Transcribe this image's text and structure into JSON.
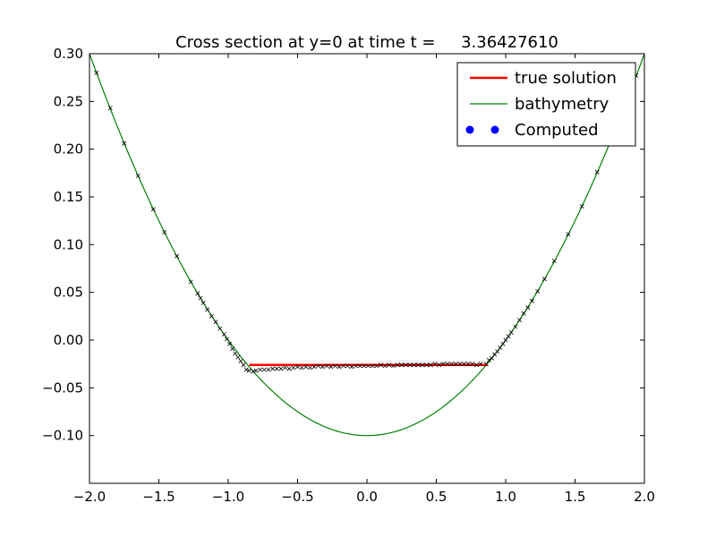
{
  "chart_data": {
    "type": "line",
    "title": "Cross section at y=0 at time t =     3.36427610",
    "xlabel": "",
    "ylabel": "",
    "xlim": [
      -2.0,
      2.0
    ],
    "ylim": [
      -0.15,
      0.3
    ],
    "grid": false,
    "legend_position": "top-right",
    "x_ticks": [
      -2.0,
      -1.5,
      -1.0,
      -0.5,
      0.0,
      0.5,
      1.0,
      1.5,
      2.0
    ],
    "x_tick_labels": [
      "−2.0",
      "−1.5",
      "−1.0",
      "−0.5",
      "0.0",
      "0.5",
      "1.0",
      "1.5",
      "2.0"
    ],
    "y_ticks": [
      -0.1,
      -0.05,
      0.0,
      0.05,
      0.1,
      0.15,
      0.2,
      0.25,
      0.3
    ],
    "y_tick_labels": [
      "−0.10",
      "−0.05",
      "0.00",
      "0.05",
      "0.10",
      "0.15",
      "0.20",
      "0.25",
      "0.30"
    ],
    "series": [
      {
        "name": "true solution",
        "kind": "line",
        "color": "#ff0000",
        "x": [
          -0.848,
          0.868
        ],
        "y": [
          -0.026,
          -0.026
        ]
      },
      {
        "name": "bathymetry",
        "kind": "curve",
        "color": "#008000",
        "formula": "y = 0.1*x^2 - 0.1",
        "x_range": [
          -2.0,
          2.0
        ]
      },
      {
        "name": "Computed",
        "kind": "markers",
        "legend_color": "#0000ff",
        "marker_color": "#000000",
        "x": [
          -1.95,
          -1.85,
          -1.75,
          -1.65,
          -1.54,
          -1.46,
          -1.37,
          -1.27,
          -1.22,
          -1.2,
          -1.18,
          -1.15,
          -1.12,
          -1.09,
          -1.06,
          -1.03,
          -1.01,
          -0.99,
          -0.97,
          -0.95,
          -0.93,
          -0.91,
          -0.89,
          -0.87,
          -0.85,
          -0.82,
          -0.8,
          -0.77,
          -0.74,
          -0.71,
          -0.68,
          -0.65,
          -0.62,
          -0.59,
          -0.56,
          -0.53,
          -0.5,
          -0.47,
          -0.44,
          -0.41,
          -0.38,
          -0.35,
          -0.32,
          -0.29,
          -0.26,
          -0.23,
          -0.2,
          -0.17,
          -0.14,
          -0.11,
          -0.08,
          -0.05,
          -0.02,
          0.01,
          0.04,
          0.07,
          0.1,
          0.13,
          0.16,
          0.19,
          0.22,
          0.25,
          0.28,
          0.31,
          0.34,
          0.37,
          0.4,
          0.43,
          0.46,
          0.49,
          0.52,
          0.55,
          0.58,
          0.61,
          0.64,
          0.67,
          0.7,
          0.73,
          0.76,
          0.79,
          0.82,
          0.86,
          0.88,
          0.9,
          0.92,
          0.94,
          0.96,
          0.98,
          1.0,
          1.02,
          1.04,
          1.07,
          1.1,
          1.13,
          1.16,
          1.19,
          1.23,
          1.28,
          1.35,
          1.45,
          1.55,
          1.66,
          1.76,
          1.87,
          1.94
        ],
        "y": [
          0.28,
          0.243,
          0.206,
          0.172,
          0.137,
          0.113,
          0.088,
          0.061,
          0.049,
          0.044,
          0.039,
          0.032,
          0.025,
          0.019,
          0.012,
          0.006,
          0.001,
          -0.004,
          -0.009,
          -0.014,
          -0.018,
          -0.022,
          -0.026,
          -0.031,
          -0.032,
          -0.033,
          -0.032,
          -0.031,
          -0.031,
          -0.031,
          -0.03,
          -0.03,
          -0.03,
          -0.029,
          -0.03,
          -0.029,
          -0.028,
          -0.029,
          -0.028,
          -0.029,
          -0.028,
          -0.027,
          -0.028,
          -0.027,
          -0.028,
          -0.027,
          -0.028,
          -0.027,
          -0.027,
          -0.028,
          -0.027,
          -0.027,
          -0.027,
          -0.027,
          -0.027,
          -0.027,
          -0.026,
          -0.027,
          -0.026,
          -0.027,
          -0.026,
          -0.026,
          -0.026,
          -0.026,
          -0.026,
          -0.026,
          -0.026,
          -0.026,
          -0.026,
          -0.025,
          -0.026,
          -0.025,
          -0.025,
          -0.025,
          -0.025,
          -0.025,
          -0.025,
          -0.025,
          -0.025,
          -0.026,
          -0.025,
          -0.025,
          -0.021,
          -0.019,
          -0.015,
          -0.012,
          -0.008,
          -0.004,
          0.0,
          0.004,
          0.008,
          0.014,
          0.021,
          0.028,
          0.034,
          0.041,
          0.051,
          0.064,
          0.083,
          0.111,
          0.14,
          0.176,
          0.21,
          0.251,
          0.277
        ]
      }
    ]
  }
}
